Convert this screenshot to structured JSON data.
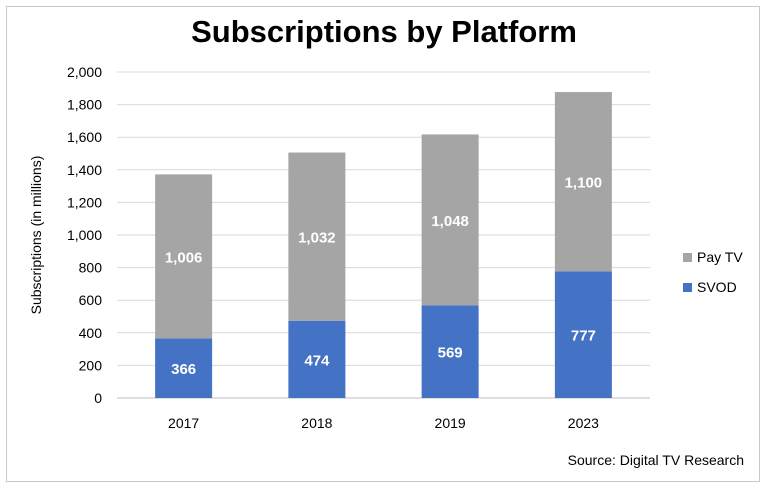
{
  "chart_data": {
    "type": "bar",
    "stacked": true,
    "title": "Subscriptions by Platform",
    "xlabel": "",
    "ylabel": "Subscriptions (in millions)",
    "categories": [
      "2017",
      "2018",
      "2019",
      "2023"
    ],
    "series": [
      {
        "name": "SVOD",
        "values": [
          366,
          474,
          569,
          777
        ],
        "labels": [
          "366",
          "474",
          "569",
          "777"
        ],
        "color": "#4472c4"
      },
      {
        "name": "Pay TV",
        "values": [
          1006,
          1032,
          1048,
          1100
        ],
        "labels": [
          "1,006",
          "1,032",
          "1,048",
          "1,100"
        ],
        "color": "#a5a5a5"
      }
    ],
    "ylim": [
      0,
      2000
    ],
    "yticks": [
      0,
      200,
      400,
      600,
      800,
      1000,
      1200,
      1400,
      1600,
      1800,
      2000
    ],
    "ytick_labels": [
      "0",
      "200",
      "400",
      "600",
      "800",
      "1,000",
      "1,200",
      "1,400",
      "1,600",
      "1,800",
      "2,000"
    ],
    "legend_placement": "right",
    "legend": [
      "Pay TV",
      "SVOD"
    ],
    "grid": true,
    "source": "Source: Digital TV Research"
  }
}
